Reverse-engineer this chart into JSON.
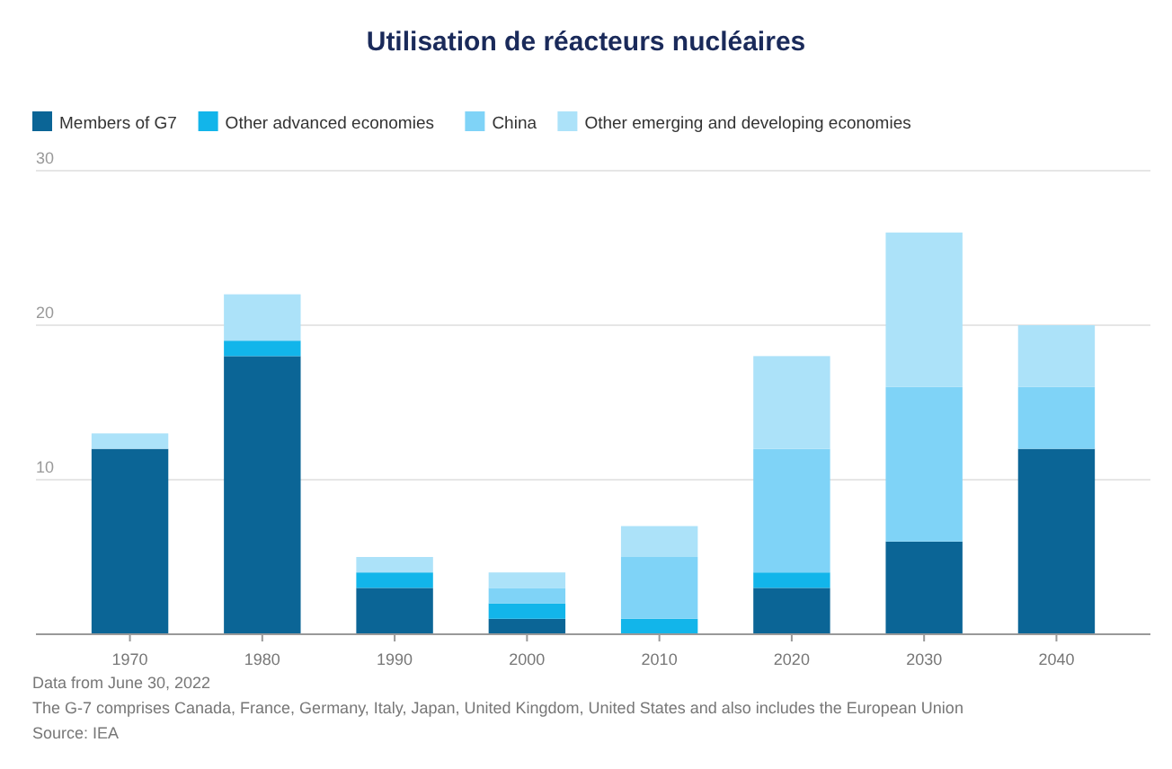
{
  "chart_data": {
    "type": "bar",
    "title": "Utilisation de réacteurs nucléaires",
    "categories": [
      "1970",
      "1980",
      "1990",
      "2000",
      "2010",
      "2020",
      "2030",
      "2040"
    ],
    "stacked": true,
    "series": [
      {
        "name": "Members of G7",
        "color": "#0b6596",
        "values": [
          12,
          18,
          3,
          1,
          0,
          3,
          6,
          12
        ]
      },
      {
        "name": "Other advanced economies",
        "color": "#12b5ea",
        "values": [
          0,
          1,
          1,
          1,
          1,
          1,
          0,
          0
        ]
      },
      {
        "name": "China",
        "color": "#7fd3f7",
        "values": [
          0,
          0,
          0,
          1,
          4,
          8,
          10,
          4
        ]
      },
      {
        "name": "Other emerging and developing economies",
        "color": "#ace2f9",
        "values": [
          1,
          3,
          1,
          1,
          2,
          6,
          10,
          4
        ]
      }
    ],
    "ylim": [
      0,
      30
    ],
    "yticks": [
      {
        "value": 0,
        "label": null
      },
      10,
      20,
      30
    ],
    "grid": "y",
    "legend": "top left",
    "annotations": [
      "Data from June 30, 2022",
      "The G-7 comprises Canada, France, Germany, Italy, Japan, United Kingdom, United States and also includes the European Union",
      "Source: IEA"
    ]
  }
}
